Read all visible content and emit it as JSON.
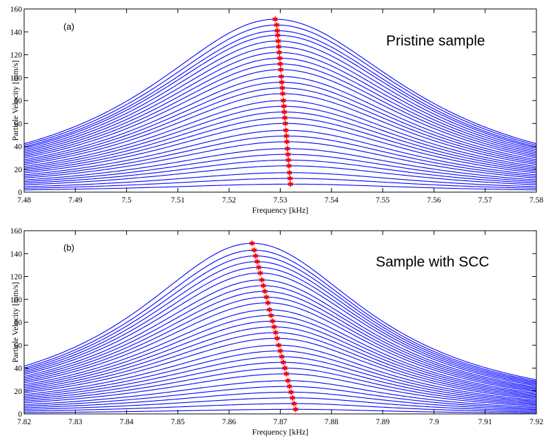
{
  "chart_data": [
    {
      "type": "line",
      "panel_label": "(a)",
      "annotation": "Pristine sample",
      "xlabel": "Frequency [kHz]",
      "ylabel": "Particle Velocity [mm/s]",
      "xlim": [
        7.48,
        7.58
      ],
      "ylim": [
        0,
        160
      ],
      "x_ticks": [
        7.48,
        7.49,
        7.5,
        7.51,
        7.52,
        7.53,
        7.54,
        7.55,
        7.56,
        7.57,
        7.58
      ],
      "x_tick_labels": [
        "7.48",
        "7.49",
        "7.5",
        "7.51",
        "7.52",
        "7.53",
        "7.54",
        "7.55",
        "7.56",
        "7.57",
        "7.58"
      ],
      "y_ticks": [
        0,
        20,
        40,
        60,
        80,
        100,
        120,
        140,
        160
      ],
      "y_tick_labels": [
        "0",
        "20",
        "40",
        "60",
        "80",
        "100",
        "120",
        "140",
        "160"
      ],
      "series_count": 29,
      "peak_amplitudes": [
        7,
        12,
        17,
        23,
        28,
        33,
        38,
        44,
        49,
        54,
        60,
        65,
        70,
        75,
        80,
        86,
        91,
        96,
        101,
        107,
        112,
        117,
        122,
        127,
        132,
        137,
        141,
        146,
        151
      ],
      "peak_frequencies": [
        7.532,
        7.5319,
        7.5318,
        7.5317,
        7.5316,
        7.5315,
        7.5314,
        7.5313,
        7.5312,
        7.5311,
        7.531,
        7.5309,
        7.5308,
        7.5307,
        7.5306,
        7.5305,
        7.5304,
        7.5303,
        7.5302,
        7.5301,
        7.53,
        7.5299,
        7.5298,
        7.5297,
        7.5296,
        7.5295,
        7.5294,
        7.5293,
        7.529
      ],
      "edge_level_fraction_left": 0.28,
      "edge_level_fraction_right": 0.28,
      "line_color": "#0000ff",
      "marker_color": "#ff0000",
      "marker_symbol": "*"
    },
    {
      "type": "line",
      "panel_label": "(b)",
      "annotation": "Sample with SCC",
      "xlabel": "Frequency [kHz]",
      "ylabel": "Particle Velocity [mm/s]",
      "xlim": [
        7.82,
        7.92
      ],
      "ylim": [
        0,
        160
      ],
      "x_ticks": [
        7.82,
        7.83,
        7.84,
        7.85,
        7.86,
        7.87,
        7.88,
        7.89,
        7.9,
        7.91,
        7.92
      ],
      "x_tick_labels": [
        "7.82",
        "7.83",
        "7.84",
        "7.85",
        "7.86",
        "7.87",
        "7.88",
        "7.89",
        "7.9",
        "7.91",
        "7.92"
      ],
      "y_ticks": [
        0,
        20,
        40,
        60,
        80,
        100,
        120,
        140,
        160
      ],
      "y_tick_labels": [
        "0",
        "20",
        "40",
        "60",
        "80",
        "100",
        "120",
        "140",
        "160"
      ],
      "series_count": 29,
      "peak_amplitudes": [
        4,
        9,
        14,
        19,
        24,
        29,
        35,
        40,
        45,
        50,
        55,
        60,
        66,
        71,
        76,
        81,
        86,
        91,
        97,
        102,
        107,
        112,
        117,
        123,
        128,
        133,
        138,
        143,
        149
      ],
      "peak_frequencies": [
        7.873,
        7.8727,
        7.8724,
        7.8721,
        7.8718,
        7.8715,
        7.8712,
        7.8709,
        7.8706,
        7.8703,
        7.87,
        7.8697,
        7.8694,
        7.8691,
        7.8688,
        7.8685,
        7.8682,
        7.8679,
        7.8676,
        7.8673,
        7.867,
        7.8667,
        7.8664,
        7.8661,
        7.8658,
        7.8655,
        7.8652,
        7.8649,
        7.8645
      ],
      "edge_level_fraction_left": 0.28,
      "edge_level_fraction_right": 0.2,
      "line_color": "#0000ff",
      "marker_color": "#ff0000",
      "marker_symbol": "*"
    }
  ]
}
